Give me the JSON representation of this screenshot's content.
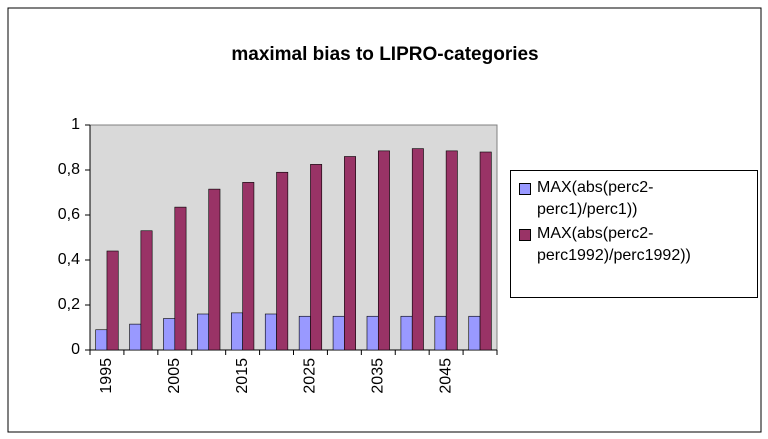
{
  "chart_data": {
    "type": "bar",
    "title": "maximal bias to  LIPRO-categories",
    "categories": [
      "1995",
      null,
      "2005",
      null,
      "2015",
      null,
      "2025",
      null,
      "2035",
      null,
      "2045",
      null
    ],
    "series": [
      {
        "name": "MAX(abs(perc2-perc1)/perc1))",
        "color": "#9999ff",
        "values": [
          0.09,
          0.115,
          0.14,
          0.16,
          0.165,
          0.16,
          0.15,
          0.15,
          0.15,
          0.15,
          0.15,
          0.15
        ]
      },
      {
        "name": "MAX(abs(perc2-perc1992)/perc1992))",
        "color": "#993366",
        "values": [
          0.44,
          0.53,
          0.635,
          0.715,
          0.745,
          0.79,
          0.825,
          0.86,
          0.885,
          0.895,
          0.885,
          0.88
        ]
      }
    ],
    "ylim": [
      0,
      1
    ],
    "yticks": [
      0,
      {
        "value": 0.2,
        "label": "0,2"
      },
      {
        "value": 0.4,
        "label": "0,4"
      },
      {
        "value": 0.6,
        "label": "0,6"
      },
      {
        "value": 0.8,
        "label": "0,8"
      },
      1
    ],
    "legend": "right"
  }
}
